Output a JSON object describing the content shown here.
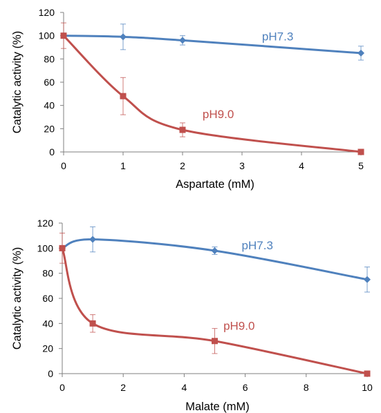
{
  "chart_data": [
    {
      "type": "line",
      "xlabel": "Aspartate (mM)",
      "ylabel": "Catalytic activity (%)",
      "xlim": [
        0,
        5
      ],
      "ylim": [
        0,
        120
      ],
      "x_ticks": [
        0,
        1,
        2,
        3,
        4,
        5
      ],
      "y_ticks": [
        0,
        20,
        40,
        60,
        80,
        100,
        120
      ],
      "grid": false,
      "series": [
        {
          "name": "pH7.3",
          "color": "#4f81bd",
          "marker": "diamond",
          "points": [
            {
              "x": 0,
              "y": 100,
              "err": 0
            },
            {
              "x": 1,
              "y": 99,
              "err": 11
            },
            {
              "x": 2,
              "y": 96,
              "err": 4
            },
            {
              "x": 5,
              "y": 85,
              "err": 6
            }
          ]
        },
        {
          "name": "pH9.0",
          "color": "#c0504d",
          "marker": "square",
          "points": [
            {
              "x": 0,
              "y": 100,
              "err": 11
            },
            {
              "x": 1,
              "y": 48,
              "err": 16
            },
            {
              "x": 2,
              "y": 19,
              "err": 6
            },
            {
              "x": 5,
              "y": 0,
              "err": 0
            }
          ]
        }
      ]
    },
    {
      "type": "line",
      "xlabel": "Malate (mM)",
      "ylabel": "Catalytic activity (%)",
      "xlim": [
        0,
        10
      ],
      "ylim": [
        0,
        120
      ],
      "x_ticks": [
        0,
        2,
        4,
        6,
        8,
        10
      ],
      "y_ticks": [
        0,
        20,
        40,
        60,
        80,
        100,
        120
      ],
      "grid": false,
      "series": [
        {
          "name": "pH7.3",
          "color": "#4f81bd",
          "marker": "diamond",
          "points": [
            {
              "x": 0,
              "y": 100,
              "err": 0
            },
            {
              "x": 1,
              "y": 107,
              "err": 10
            },
            {
              "x": 5,
              "y": 98,
              "err": 3
            },
            {
              "x": 10,
              "y": 75,
              "err": 10
            }
          ]
        },
        {
          "name": "pH9.0",
          "color": "#c0504d",
          "marker": "square",
          "points": [
            {
              "x": 0,
              "y": 100,
              "err": 12
            },
            {
              "x": 1,
              "y": 40,
              "err": 7
            },
            {
              "x": 5,
              "y": 26,
              "err": 10
            },
            {
              "x": 10,
              "y": 0,
              "err": 0
            }
          ]
        }
      ]
    }
  ]
}
